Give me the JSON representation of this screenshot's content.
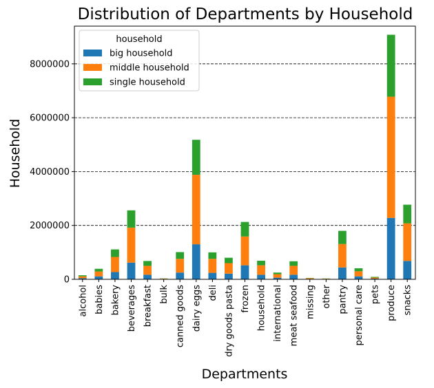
{
  "chart_data": {
    "type": "bar",
    "stacked": true,
    "title": "Distribution of Departments by Household",
    "xlabel": "Departments",
    "ylabel": "Household",
    "ylim": [
      0,
      9400000
    ],
    "yticks": [
      0,
      2000000,
      4000000,
      6000000,
      8000000
    ],
    "ytick_labels": [
      "0",
      "2000000",
      "4000000",
      "6000000",
      "8000000"
    ],
    "grid": "y-dashed",
    "legend": {
      "title": "household",
      "position": "upper-left"
    },
    "categories": [
      "alcohol",
      "babies",
      "bakery",
      "beverages",
      "breakfast",
      "bulk",
      "canned goods",
      "dairy eggs",
      "deli",
      "dry goods pasta",
      "frozen",
      "household",
      "international",
      "meat seafood",
      "missing",
      "other",
      "pantry",
      "personal care",
      "pets",
      "produce",
      "snacks"
    ],
    "series": [
      {
        "name": "big household",
        "color": "#1f77b4",
        "values": [
          40000,
          110000,
          270000,
          620000,
          170000,
          8000,
          250000,
          1300000,
          240000,
          210000,
          520000,
          170000,
          60000,
          170000,
          15000,
          8000,
          440000,
          110000,
          25000,
          2280000,
          680000
        ]
      },
      {
        "name": "middle household",
        "color": "#ff7f0e",
        "values": [
          70000,
          180000,
          560000,
          1300000,
          330000,
          16000,
          510000,
          2580000,
          520000,
          390000,
          1070000,
          350000,
          130000,
          330000,
          25000,
          15000,
          870000,
          190000,
          40000,
          4500000,
          1400000
        ]
      },
      {
        "name": "single household",
        "color": "#2ca02c",
        "values": [
          40000,
          100000,
          280000,
          640000,
          180000,
          8000,
          250000,
          1300000,
          240000,
          200000,
          540000,
          170000,
          60000,
          170000,
          10000,
          7000,
          490000,
          110000,
          25000,
          2300000,
          690000
        ]
      }
    ]
  }
}
